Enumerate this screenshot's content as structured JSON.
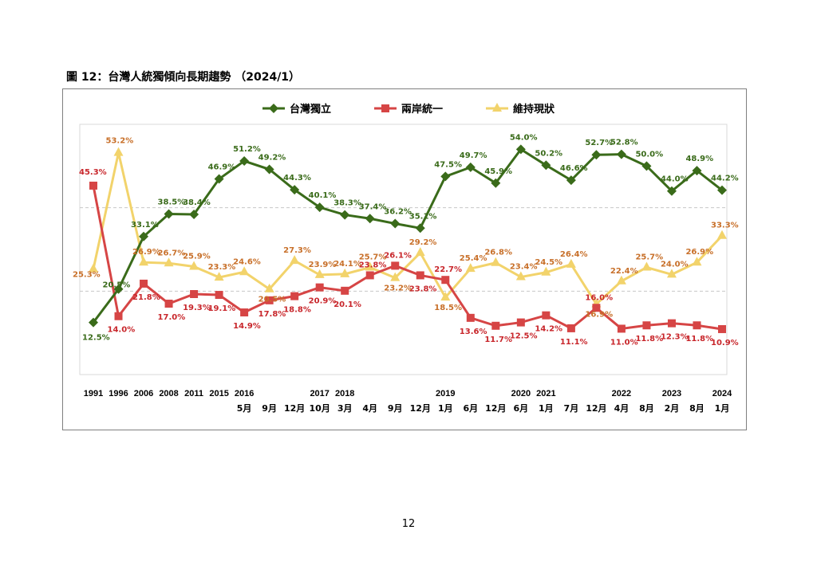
{
  "page": {
    "title": "圖 12：台灣人統獨傾向長期趨勢 （2024/1）",
    "page_number": "12"
  },
  "chart_data": {
    "type": "line",
    "ylim": [
      0,
      60
    ],
    "grid": "horizontal dashed",
    "legend_position": "top-center",
    "categories": [
      {
        "year": "1991",
        "month": ""
      },
      {
        "year": "1996",
        "month": ""
      },
      {
        "year": "2006",
        "month": ""
      },
      {
        "year": "2008",
        "month": ""
      },
      {
        "year": "2011",
        "month": ""
      },
      {
        "year": "2015",
        "month": ""
      },
      {
        "year": "2016",
        "month": "5月"
      },
      {
        "year": "",
        "month": "9月"
      },
      {
        "year": "",
        "month": "12月"
      },
      {
        "year": "2017",
        "month": "10月"
      },
      {
        "year": "2018",
        "month": "3月"
      },
      {
        "year": "",
        "month": "4月"
      },
      {
        "year": "",
        "month": "9月"
      },
      {
        "year": "",
        "month": "12月"
      },
      {
        "year": "2019",
        "month": "1月"
      },
      {
        "year": "",
        "month": "6月"
      },
      {
        "year": "",
        "month": "12月"
      },
      {
        "year": "2020",
        "month": "6月"
      },
      {
        "year": "2021",
        "month": "1月"
      },
      {
        "year": "",
        "month": "7月"
      },
      {
        "year": "",
        "month": "12月"
      },
      {
        "year": "2022",
        "month": "4月"
      },
      {
        "year": "",
        "month": "8月"
      },
      {
        "year": "2023",
        "month": "2月"
      },
      {
        "year": "",
        "month": "8月"
      },
      {
        "year": "2024",
        "month": "1月"
      }
    ],
    "series": [
      {
        "name": "台灣獨立",
        "color": "#3a6b1a",
        "label_color": "#3a6b1a",
        "marker": "diamond",
        "values": [
          12.5,
          20.5,
          33.1,
          38.5,
          38.4,
          46.9,
          51.2,
          49.2,
          44.3,
          40.1,
          38.3,
          37.4,
          36.2,
          35.1,
          47.5,
          49.7,
          45.9,
          54.0,
          50.2,
          46.6,
          52.7,
          52.8,
          50.0,
          44.0,
          48.9,
          44.2
        ],
        "labels": [
          "12.5%",
          "20.5%",
          "33.1%",
          "38.5%",
          "38.4%",
          "46.9%",
          "51.2%",
          "49.2%",
          "44.3%",
          "40.1%",
          "38.3%",
          "37.4%",
          "36.2%",
          "35.1%",
          "47.5%",
          "49.7%",
          "45.9%",
          "54.0%",
          "50.2%",
          "46.6%",
          "52.7%",
          "52.8%",
          "50.0%",
          "44.0%",
          "48.9%",
          "44.2%"
        ]
      },
      {
        "name": "兩岸統一",
        "color": "#d64545",
        "label_color": "#c8262b",
        "marker": "square",
        "values": [
          45.3,
          14.0,
          21.8,
          17.0,
          19.3,
          19.1,
          14.9,
          17.8,
          18.8,
          20.9,
          20.1,
          23.8,
          26.1,
          23.8,
          22.7,
          13.6,
          11.7,
          12.5,
          14.2,
          11.1,
          16.0,
          11.0,
          11.8,
          12.3,
          11.8,
          10.9
        ],
        "labels": [
          "45.3%",
          "14.0%",
          "21.8%",
          "17.0%",
          "19.3%",
          "19.1%",
          "14.9%",
          "17.8%",
          "18.8%",
          "20.9%",
          "20.1%",
          "23.8%",
          "26.1%",
          "23.8%",
          "22.7%",
          "13.6%",
          "11.7%",
          "12.5%",
          "14.2%",
          "11.1%",
          "16.0%",
          "11.0%",
          "11.8%",
          "12.3%",
          "11.8%",
          "10.9%"
        ]
      },
      {
        "name": "維持現狀",
        "color": "#f2d36b",
        "label_color": "#c8702a",
        "marker": "triangle",
        "values": [
          25.3,
          53.2,
          26.9,
          26.7,
          25.9,
          23.3,
          24.6,
          20.5,
          27.3,
          23.9,
          24.1,
          25.7,
          23.2,
          29.2,
          18.5,
          25.4,
          26.8,
          23.4,
          24.5,
          26.4,
          16.9,
          22.4,
          25.7,
          24.0,
          26.9,
          33.3
        ],
        "labels": [
          "25.3%",
          "53.2%",
          "26.9%",
          "26.7%",
          "25.9%",
          "23.3%",
          "24.6%",
          "20.5%",
          "27.3%",
          "23.9%",
          "24.1%",
          "25.7%",
          "23.2%",
          "29.2%",
          "18.5%",
          "25.4%",
          "26.8%",
          "23.4%",
          "24.5%",
          "26.4%",
          "16.9%",
          "22.4%",
          "25.7%",
          "24.0%",
          "26.9%",
          "33.3%"
        ]
      }
    ]
  }
}
